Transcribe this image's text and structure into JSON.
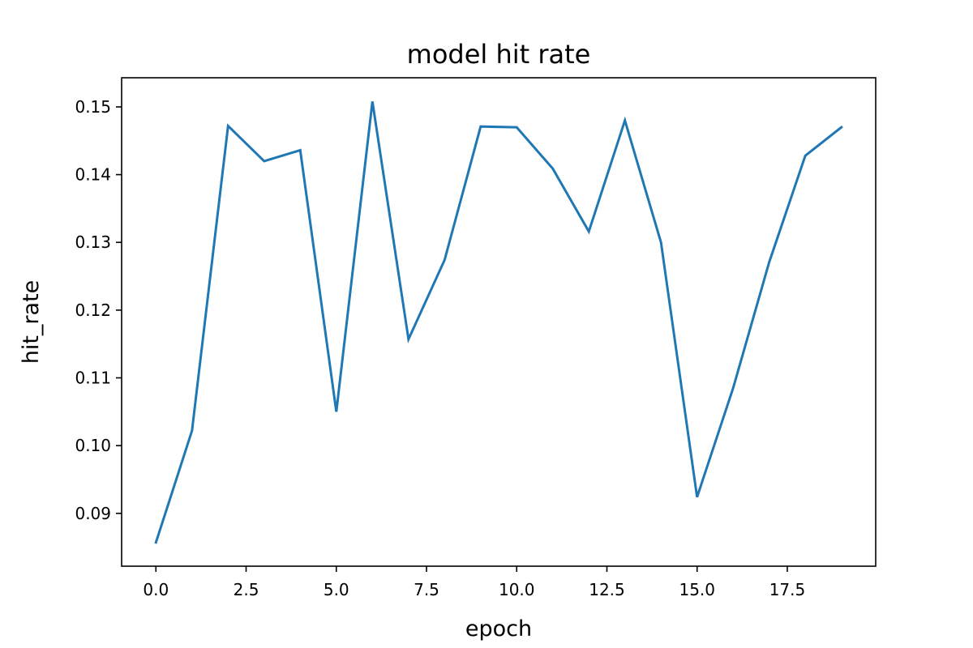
{
  "chart_data": {
    "type": "line",
    "title": "model hit rate",
    "xlabel": "epoch",
    "ylabel": "hit_rate",
    "xlim": [
      -0.95,
      19.95
    ],
    "ylim": [
      0.0822,
      0.1543
    ],
    "x_ticks": [
      0.0,
      2.5,
      5.0,
      7.5,
      10.0,
      12.5,
      15.0,
      17.5
    ],
    "x_tick_labels": [
      "0.0",
      "2.5",
      "5.0",
      "7.5",
      "10.0",
      "12.5",
      "15.0",
      "17.5"
    ],
    "y_ticks": [
      0.09,
      0.1,
      0.11,
      0.12,
      0.13,
      0.14,
      0.15
    ],
    "y_tick_labels": [
      "0.09",
      "0.10",
      "0.11",
      "0.12",
      "0.13",
      "0.14",
      "0.15"
    ],
    "grid": false,
    "series": [
      {
        "color": "#1f77b4",
        "x": [
          0,
          1,
          2,
          3,
          4,
          5,
          6,
          7,
          8,
          9,
          10,
          11,
          12,
          13,
          14,
          15,
          16,
          17,
          18,
          19
        ],
        "y": [
          0.0857,
          0.1022,
          0.1472,
          0.142,
          0.1436,
          0.105,
          0.1508,
          0.1157,
          0.1274,
          0.1471,
          0.147,
          0.1409,
          0.1316,
          0.148,
          0.13,
          0.0924,
          0.1085,
          0.1271,
          0.1428,
          0.147
        ]
      }
    ]
  }
}
